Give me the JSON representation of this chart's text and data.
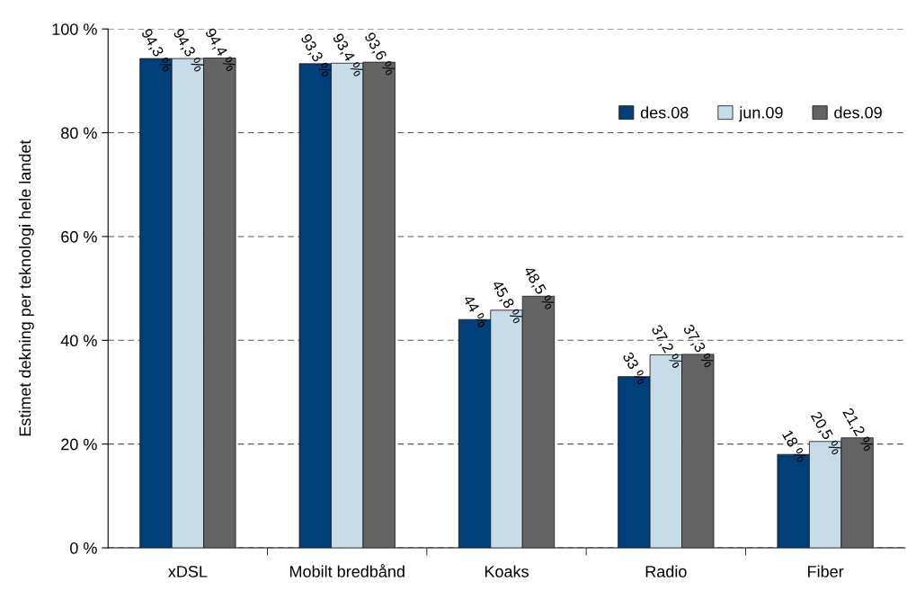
{
  "chart_data": {
    "type": "bar",
    "ylabel": "Estimet dekning per teknologi hele landet",
    "categories": [
      "xDSL",
      "Mobilt bredbånd",
      "Koaks",
      "Radio",
      "Fiber"
    ],
    "series": [
      {
        "name": "des.08",
        "color": "#003f7a",
        "values": [
          94.3,
          93.3,
          44,
          33,
          18
        ],
        "value_labels": [
          "94,3 %",
          "93,3 %",
          "44 %",
          "33 %",
          "18 %"
        ]
      },
      {
        "name": "jun.09",
        "color": "#c6dce6",
        "values": [
          94.3,
          93.4,
          45.8,
          37.2,
          20.5
        ],
        "value_labels": [
          "94,3 %",
          "93,4 %",
          "45,8 %",
          "37,2 %",
          "20,5 %"
        ]
      },
      {
        "name": "des.09",
        "color": "#646464",
        "values": [
          94.4,
          93.6,
          48.5,
          37.3,
          21.2
        ],
        "value_labels": [
          "94,4 %",
          "93,6 %",
          "48,5 %",
          "37,3 %",
          "21,2 %"
        ]
      }
    ],
    "ylim": [
      0,
      100
    ],
    "yticks": [
      {
        "value": 0,
        "label": "0 %"
      },
      {
        "value": 20,
        "label": "20 %"
      },
      {
        "value": 40,
        "label": "40 %"
      },
      {
        "value": 60,
        "label": "60 %"
      },
      {
        "value": 80,
        "label": "80 %"
      },
      {
        "value": 100,
        "label": "100 %"
      }
    ],
    "grid": "y",
    "legend": "top right"
  }
}
